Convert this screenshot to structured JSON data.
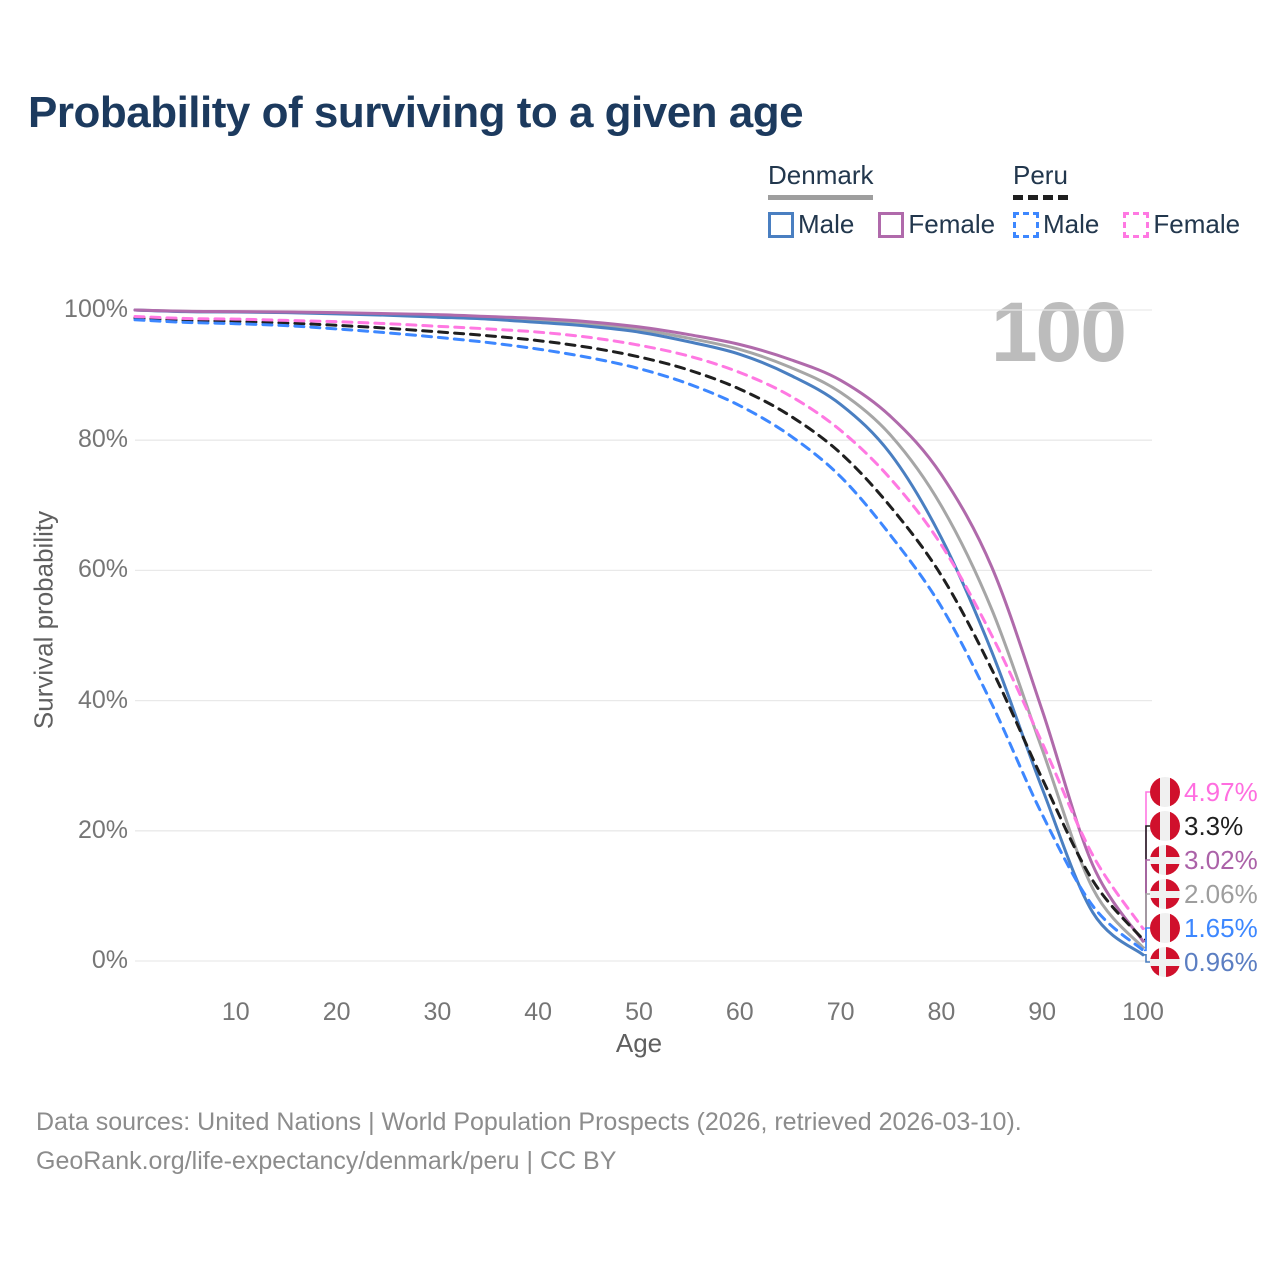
{
  "title": "Probability of surviving to a given age",
  "watermark": "100",
  "legend": {
    "groups": [
      {
        "label": "Denmark",
        "line_style": "solid",
        "underline_color": "#9e9e9e",
        "items": [
          {
            "label": "Male",
            "color": "#4a7fc1"
          },
          {
            "label": "Female",
            "color": "#b06aab"
          }
        ]
      },
      {
        "label": "Peru",
        "line_style": "dashed",
        "underline_color": "#1f1f1f",
        "items": [
          {
            "label": "Male",
            "color": "#3d87ff"
          },
          {
            "label": "Female",
            "color": "#ff78e2"
          }
        ]
      }
    ]
  },
  "flags": {
    "red": "#d0102c",
    "white": "#f0f0f0"
  },
  "chart_data": {
    "type": "line",
    "title": "Probability of surviving to a given age",
    "xlabel": "Age",
    "ylabel": "Survival probability",
    "xlim": [
      0,
      100
    ],
    "ylim": [
      0,
      100
    ],
    "grid": "horizontal",
    "legend_position": "top-right",
    "x_ticks": [
      10,
      20,
      30,
      40,
      50,
      60,
      70,
      80,
      90,
      100
    ],
    "y_ticks": [
      0,
      20,
      40,
      60,
      80,
      100
    ],
    "y_tick_suffix": "%",
    "x": [
      0,
      5,
      10,
      15,
      20,
      25,
      30,
      35,
      40,
      45,
      50,
      55,
      60,
      65,
      70,
      75,
      80,
      85,
      90,
      95,
      100
    ],
    "series": [
      {
        "name": "Denmark",
        "country": "Denmark",
        "sex": "All",
        "style": "solid",
        "color": "#a6a6a6",
        "flag": "denmark",
        "end_label": "2.06%",
        "end_value": 2.06,
        "end_label_color": "#9e9e9e",
        "values": [
          100,
          99.78,
          99.72,
          99.65,
          99.5,
          99.33,
          99.1,
          98.8,
          98.4,
          97.85,
          97.0,
          95.65,
          93.95,
          91.2,
          87.35,
          80.7,
          69.9,
          54.0,
          32.5,
          11.2,
          2.06
        ]
      },
      {
        "name": "Denmark Male",
        "country": "Denmark",
        "sex": "Male",
        "style": "solid",
        "color": "#4a7fc1",
        "flag": "denmark",
        "end_label": "0.96%",
        "end_value": 0.96,
        "end_label_color": "#5b7ec2",
        "values": [
          100,
          99.75,
          99.7,
          99.6,
          99.4,
          99.2,
          98.9,
          98.6,
          98.1,
          97.5,
          96.6,
          95.1,
          93.2,
          90.0,
          85.5,
          77.8,
          65.0,
          47.5,
          26.5,
          7.5,
          0.96
        ]
      },
      {
        "name": "Denmark Female",
        "country": "Denmark",
        "sex": "Female",
        "style": "solid",
        "color": "#b06aab",
        "flag": "denmark",
        "end_label": "3.02%",
        "end_value": 3.02,
        "end_label_color": "#ab62a8",
        "values": [
          100,
          99.8,
          99.75,
          99.7,
          99.6,
          99.45,
          99.3,
          99.0,
          98.7,
          98.2,
          97.4,
          96.2,
          94.7,
          92.4,
          89.2,
          83.6,
          74.7,
          60.5,
          38.5,
          14.8,
          3.02
        ]
      },
      {
        "name": "Peru",
        "country": "Peru",
        "sex": "All",
        "style": "dashed",
        "color": "#1f1f1f",
        "flag": "peru",
        "end_label": "3.3%",
        "end_value": 3.3,
        "end_label_color": "#1f1f1f",
        "values": [
          98.75,
          98.4,
          98.25,
          98.0,
          97.65,
          97.2,
          96.65,
          96.05,
          95.3,
          94.25,
          92.8,
          90.75,
          87.85,
          83.75,
          78.0,
          69.7,
          59.2,
          44.8,
          28.0,
          12.4,
          3.3
        ]
      },
      {
        "name": "Peru Male",
        "country": "Peru",
        "sex": "Male",
        "style": "dashed",
        "color": "#3d87ff",
        "flag": "peru",
        "end_label": "1.65%",
        "end_value": 1.65,
        "end_label_color": "#3d87ff",
        "values": [
          98.5,
          98.1,
          97.9,
          97.6,
          97.1,
          96.5,
          95.8,
          95.0,
          94.0,
          92.7,
          91.0,
          88.6,
          85.3,
          80.7,
          74.4,
          65.3,
          54.4,
          39.5,
          22.5,
          8.5,
          1.65
        ]
      },
      {
        "name": "Peru Female",
        "country": "Peru",
        "sex": "Female",
        "style": "dashed",
        "color": "#ff78e2",
        "flag": "peru",
        "end_label": "4.97%",
        "end_value": 4.97,
        "end_label_color": "#ff6ee0",
        "values": [
          99.0,
          98.7,
          98.6,
          98.4,
          98.2,
          97.9,
          97.5,
          97.1,
          96.6,
          95.8,
          94.6,
          92.9,
          90.4,
          86.8,
          81.5,
          74.0,
          63.9,
          50.0,
          33.5,
          16.3,
          4.97
        ]
      }
    ]
  },
  "footer": {
    "line1": "Data sources: United Nations | World Population Prospects (2026, retrieved 2026-03-10).",
    "line2": "GeoRank.org/life-expectancy/denmark/peru | CC BY"
  }
}
